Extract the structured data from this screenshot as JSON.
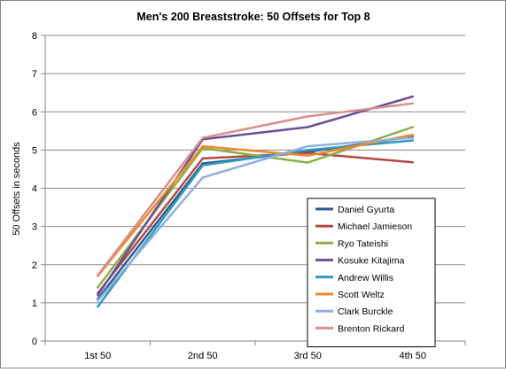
{
  "chart_data": {
    "type": "line",
    "title": "Men's 200 Breaststroke: 50 Offsets for Top 8",
    "xlabel": "",
    "ylabel": "50 Offsets in seconds",
    "categories": [
      "1st 50",
      "2nd 50",
      "3rd 50",
      "4th 50"
    ],
    "ylim": [
      0,
      8
    ],
    "yticks": [
      "0",
      "1",
      "2",
      "3",
      "4",
      "5",
      "6",
      "7",
      "8"
    ],
    "grid": "horizontal",
    "legend_position": "bottom-right",
    "series": [
      {
        "name": "Daniel Gyurta",
        "color": "#2f5d8f",
        "values": [
          1.1,
          4.65,
          4.95,
          5.35
        ]
      },
      {
        "name": "Michael Jamieson",
        "color": "#b04a45",
        "values": [
          1.25,
          4.78,
          4.92,
          4.68
        ]
      },
      {
        "name": "Ryo Tateishi",
        "color": "#8cae48",
        "values": [
          1.4,
          5.05,
          4.67,
          5.6
        ]
      },
      {
        "name": "Kosuke Kitajima",
        "color": "#6c4f94",
        "values": [
          1.2,
          5.28,
          5.6,
          6.4
        ]
      },
      {
        "name": "Andrew Willis",
        "color": "#2f9bbf",
        "values": [
          0.9,
          4.6,
          5.0,
          5.25
        ]
      },
      {
        "name": "Scott Weltz",
        "color": "#ee8a2c",
        "values": [
          1.7,
          5.1,
          4.85,
          5.4
        ]
      },
      {
        "name": "Clark Burckle",
        "color": "#8fb0dc",
        "values": [
          1.05,
          4.28,
          5.1,
          5.32
        ]
      },
      {
        "name": "Brenton Rickard",
        "color": "#d7908d",
        "values": [
          1.72,
          5.32,
          5.88,
          6.22
        ]
      }
    ]
  }
}
